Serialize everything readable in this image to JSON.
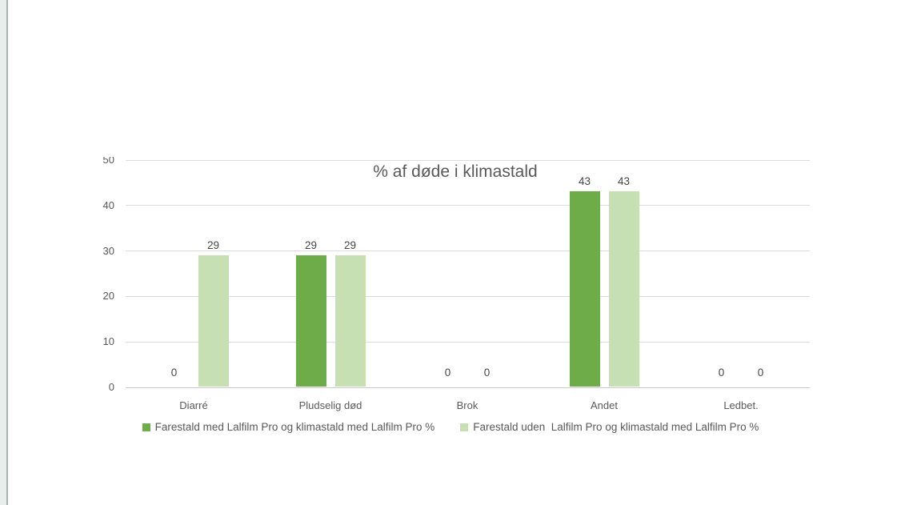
{
  "chart_data": {
    "type": "bar",
    "title": "% af døde i klimastald",
    "categories": [
      "Diarré",
      "Pludselig død",
      "Brok",
      "Andet",
      "Ledbet."
    ],
    "series": [
      {
        "name": "Farestald med Lalfilm Pro og klimastald med Lalfilm Pro %",
        "color": "#6eac49",
        "values": [
          0,
          29,
          0,
          43,
          0
        ]
      },
      {
        "name": "Farestald uden  Lalfilm Pro og klimastald med Lalfilm Pro %",
        "color": "#c6e0b4",
        "values": [
          29,
          29,
          0,
          43,
          0
        ]
      }
    ],
    "ylim": [
      0,
      50
    ],
    "yticks": [
      0,
      10,
      20,
      30,
      40,
      50
    ],
    "grid": true,
    "data_labels": true,
    "legend_position": "bottom",
    "colors": {
      "text": "#595959",
      "data_label": "#454545",
      "gridline": "#dcdcdc",
      "axis_line": "#c8c8c8"
    }
  }
}
